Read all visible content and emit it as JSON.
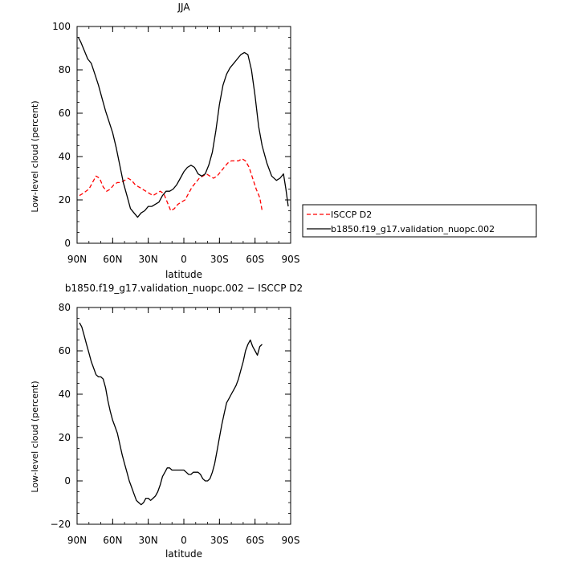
{
  "chart_data": [
    {
      "type": "line",
      "title": "JJA",
      "xlabel": "latitude",
      "ylabel": "Low-level cloud (percent)",
      "xlim": [
        90,
        -90
      ],
      "ylim": [
        0,
        100
      ],
      "xticks": [
        90,
        60,
        30,
        0,
        -30,
        -60,
        -90
      ],
      "xtick_labels": [
        "90N",
        "60N",
        "30N",
        "0",
        "30S",
        "60S",
        "90S"
      ],
      "yticks": [
        0,
        20,
        40,
        60,
        80,
        100
      ],
      "ytick_labels": [
        "0",
        "20",
        "40",
        "60",
        "80",
        "100"
      ],
      "legend": {
        "placement": "outside-right",
        "entries": [
          "ISCCP D2",
          "b1850.f19_g17.validation_nuopc.002"
        ]
      },
      "series": [
        {
          "name": "ISCCP D2",
          "color": "#ff0000",
          "dash": "dashed",
          "x": [
            88,
            85,
            80,
            77,
            74,
            71,
            68,
            65,
            62,
            59,
            56,
            53,
            50,
            47,
            44,
            41,
            38,
            35,
            32,
            29,
            26,
            23,
            20,
            17,
            14,
            11,
            8,
            5,
            2,
            -1,
            -4,
            -7,
            -10,
            -13,
            -16,
            -19,
            -22,
            -25,
            -28,
            -31,
            -34,
            -37,
            -40,
            -43,
            -46,
            -49,
            -52,
            -55,
            -58,
            -61,
            -64,
            -66
          ],
          "y": [
            22,
            23,
            25,
            28,
            31,
            30,
            26,
            24,
            25,
            27,
            28,
            28,
            29,
            30,
            29,
            27,
            26,
            25,
            24,
            23,
            22,
            23,
            24,
            23,
            19,
            15,
            16,
            18,
            19,
            20,
            23,
            26,
            28,
            30,
            31,
            32,
            31,
            30,
            31,
            33,
            35,
            37,
            38,
            38,
            38,
            39,
            38,
            35,
            30,
            25,
            21,
            15
          ]
        },
        {
          "name": "b1850.f19_g17.validation_nuopc.002",
          "color": "#000000",
          "dash": "solid",
          "x": [
            89,
            87,
            84,
            81,
            78,
            75,
            72,
            69,
            66,
            63,
            60,
            57,
            54,
            51,
            48,
            45,
            42,
            39,
            36,
            33,
            30,
            27,
            24,
            21,
            18,
            15,
            12,
            9,
            6,
            3,
            0,
            -3,
            -6,
            -9,
            -12,
            -15,
            -18,
            -21,
            -24,
            -27,
            -30,
            -33,
            -36,
            -39,
            -42,
            -45,
            -48,
            -51,
            -54,
            -57,
            -60,
            -63,
            -66,
            -70,
            -74,
            -78,
            -81,
            -84,
            -86,
            -88
          ],
          "y": [
            95,
            93,
            89,
            85,
            83,
            78,
            73,
            67,
            61,
            56,
            51,
            44,
            36,
            28,
            22,
            16,
            14,
            12,
            14,
            15,
            17,
            17,
            18,
            19,
            22,
            24,
            24,
            25,
            27,
            30,
            33,
            35,
            36,
            35,
            32,
            31,
            32,
            36,
            42,
            52,
            64,
            73,
            78,
            81,
            83,
            85,
            87,
            88,
            87,
            80,
            68,
            54,
            45,
            37,
            31,
            29,
            30,
            32,
            25,
            17
          ]
        }
      ]
    },
    {
      "type": "line",
      "title": "b1850.f19_g17.validation_nuopc.002 − ISCCP D2",
      "xlabel": "latitude",
      "ylabel": "Low-level cloud (percent)",
      "xlim": [
        90,
        -90
      ],
      "ylim": [
        -20,
        80
      ],
      "xticks": [
        90,
        60,
        30,
        0,
        -30,
        -60,
        -90
      ],
      "xtick_labels": [
        "90N",
        "60N",
        "30N",
        "0",
        "30S",
        "60S",
        "90S"
      ],
      "yticks": [
        -20,
        0,
        20,
        40,
        60,
        80
      ],
      "ytick_labels": [
        "−20",
        "0",
        "20",
        "40",
        "60",
        "80"
      ],
      "series": [
        {
          "color": "#000000",
          "dash": "solid",
          "x": [
            88,
            86,
            84,
            82,
            80,
            78,
            76,
            74,
            72,
            70,
            68,
            66,
            64,
            62,
            60,
            58,
            56,
            54,
            52,
            50,
            48,
            46,
            44,
            42,
            40,
            38,
            36,
            34,
            32,
            30,
            28,
            26,
            24,
            22,
            20,
            18,
            16,
            14,
            12,
            10,
            8,
            6,
            4,
            2,
            0,
            -2,
            -4,
            -6,
            -8,
            -10,
            -12,
            -14,
            -16,
            -18,
            -20,
            -22,
            -24,
            -26,
            -28,
            -30,
            -32,
            -34,
            -36,
            -38,
            -40,
            -42,
            -44,
            -46,
            -48,
            -50,
            -52,
            -54,
            -56,
            -58,
            -60,
            -62,
            -64,
            -66
          ],
          "y": [
            73,
            71,
            67,
            63,
            59,
            55,
            52,
            49,
            48,
            48,
            47,
            43,
            37,
            32,
            28,
            25,
            22,
            17,
            12,
            8,
            4,
            0,
            -3,
            -6,
            -9,
            -10,
            -11,
            -10,
            -8,
            -8,
            -9,
            -8,
            -7,
            -5,
            -2,
            2,
            4,
            6,
            6,
            5,
            5,
            5,
            5,
            5,
            5,
            4,
            3,
            3,
            4,
            4,
            4,
            3,
            1,
            0,
            0,
            1,
            4,
            8,
            14,
            20,
            26,
            31,
            36,
            38,
            40,
            42,
            44,
            47,
            51,
            55,
            60,
            63,
            65,
            62,
            60,
            58,
            62,
            63
          ]
        }
      ]
    }
  ]
}
